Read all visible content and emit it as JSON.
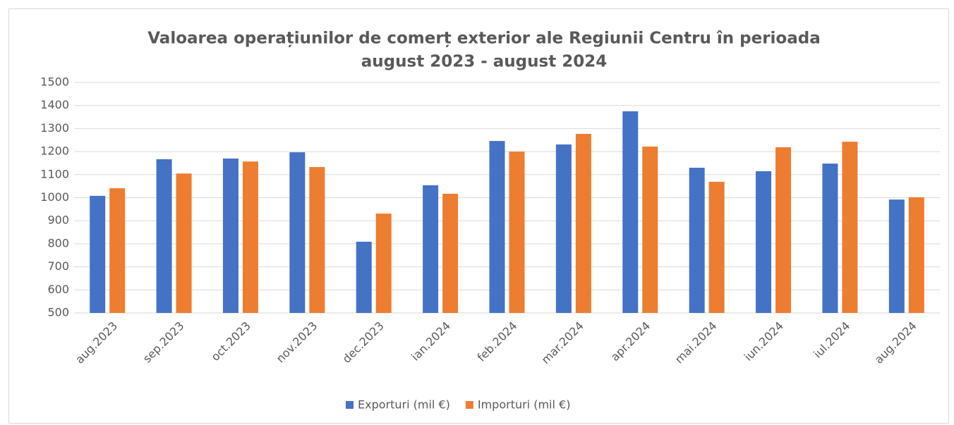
{
  "chart_data": {
    "type": "bar",
    "title": [
      "Valoarea operațiunilor de comerț exterior ale Regiunii Centru în perioada",
      "august 2023 - august 2024"
    ],
    "categories": [
      "aug.2023",
      "sep.2023",
      "oct.2023",
      "nov.2023",
      "dec.2023",
      "ian.2024",
      "feb.2024",
      "mar.2024",
      "apr.2024",
      "mai.2024",
      "iun.2024",
      "iul.2024",
      "aug.2024"
    ],
    "series": [
      {
        "name": "Exporturi (mil €)",
        "color": "#4472c4",
        "values": [
          1008,
          1167,
          1170,
          1197,
          809,
          1054,
          1246,
          1231,
          1375,
          1130,
          1115,
          1148,
          992
        ]
      },
      {
        "name": "Importuri (mil €)",
        "color": "#ed7d31",
        "values": [
          1041,
          1105,
          1157,
          1133,
          931,
          1017,
          1200,
          1277,
          1222,
          1069,
          1219,
          1243,
          1002
        ]
      }
    ],
    "ylim": [
      500,
      1500
    ],
    "yticks": [
      500,
      600,
      700,
      800,
      900,
      1000,
      1100,
      1200,
      1300,
      1400,
      1500
    ],
    "grid": true,
    "legend": "bottom"
  }
}
